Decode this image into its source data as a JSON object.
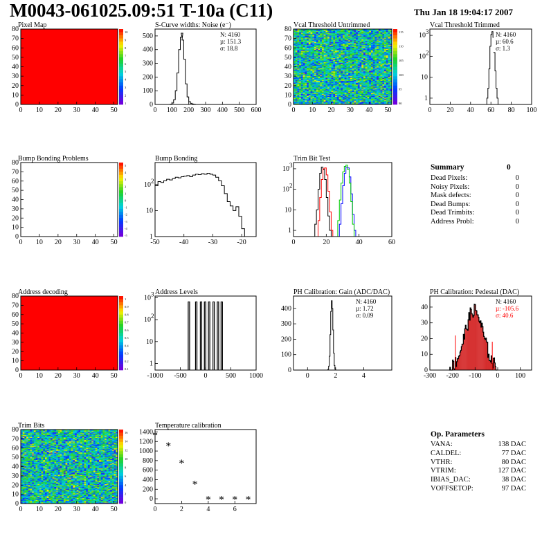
{
  "header": {
    "title": "M0043-061025.09:51 T-10a (C11)",
    "date": "Thu Jan 18 19:04:17 2007"
  },
  "colors": {
    "line": "#000000",
    "red": "#ff0000",
    "green": "#00cc00",
    "blue": "#0000ff",
    "pedestal_fill": "#cc0000"
  },
  "chart_data": [
    {
      "id": "pixel-map",
      "type": "heatmap",
      "title": "Pixel Map",
      "xlim": [
        0,
        52
      ],
      "ylim": [
        0,
        80
      ],
      "xticks": [
        0,
        10,
        20,
        30,
        40,
        50
      ],
      "yticks": [
        0,
        10,
        20,
        30,
        40,
        50,
        60,
        70,
        80
      ],
      "fill": "uniform-red",
      "zmax": 10,
      "palette_labels": [
        "10",
        "9",
        "8",
        "7",
        "6",
        "5",
        "4",
        "3",
        "2",
        "1"
      ]
    },
    {
      "id": "scurve",
      "type": "histogram",
      "title": "S-Curve widths: Noise (e⁻)",
      "xlim": [
        0,
        600
      ],
      "ylim": [
        0,
        550
      ],
      "xticks": [
        0,
        100,
        200,
        300,
        400,
        500,
        600
      ],
      "yticks": [
        0,
        100,
        200,
        300,
        400,
        500
      ],
      "stats": {
        "N": "4160",
        "mu": "151.3",
        "sigma": "18.8"
      },
      "bins": [
        [
          90,
          2
        ],
        [
          100,
          10
        ],
        [
          110,
          35
        ],
        [
          120,
          100
        ],
        [
          130,
          230
        ],
        [
          140,
          400
        ],
        [
          150,
          490
        ],
        [
          155,
          520
        ],
        [
          160,
          470
        ],
        [
          170,
          330
        ],
        [
          180,
          150
        ],
        [
          190,
          55
        ],
        [
          200,
          20
        ],
        [
          210,
          8
        ],
        [
          220,
          3
        ],
        [
          230,
          1
        ],
        [
          240,
          0
        ]
      ],
      "bin_width": 10
    },
    {
      "id": "vcal-untrimmed",
      "type": "heatmap",
      "title": "Vcal Threshold Untrimmed",
      "xlim": [
        0,
        52
      ],
      "ylim": [
        0,
        80
      ],
      "xticks": [
        0,
        10,
        20,
        30,
        40,
        50
      ],
      "yticks": [
        0,
        10,
        20,
        30,
        40,
        50,
        60,
        70,
        80
      ],
      "fill": "noise",
      "palette_labels": [
        "115",
        "110",
        "105",
        "100",
        "95",
        "90"
      ]
    },
    {
      "id": "vcal-trimmed",
      "type": "histogram",
      "title": "Vcal Threshold Trimmed",
      "xlim": [
        0,
        100
      ],
      "log_y": true,
      "ylim": [
        0.5,
        2000
      ],
      "xticks": [
        0,
        20,
        40,
        60,
        80,
        100
      ],
      "yticks": [
        1,
        10,
        100,
        1000
      ],
      "stats": {
        "N": "4160",
        "mu": "60.6",
        "sigma": "1.3"
      },
      "bins": [
        [
          56,
          1
        ],
        [
          57,
          3
        ],
        [
          58,
          25
        ],
        [
          59,
          300
        ],
        [
          60,
          1100
        ],
        [
          61,
          1500
        ],
        [
          62,
          800
        ],
        [
          63,
          150
        ],
        [
          64,
          20
        ],
        [
          65,
          3
        ],
        [
          66,
          1
        ]
      ],
      "bin_width": 1
    },
    {
      "id": "bump-problems",
      "type": "heatmap",
      "title": "Bump Bonding Problems",
      "xlim": [
        0,
        52
      ],
      "ylim": [
        0,
        80
      ],
      "xticks": [
        0,
        10,
        20,
        30,
        40,
        50
      ],
      "yticks": [
        0,
        10,
        20,
        30,
        40,
        50,
        60,
        70,
        80
      ],
      "fill": "empty",
      "palette_labels": [
        "5",
        "4",
        "3",
        "2",
        "1",
        "0",
        "-1",
        "-2",
        "-3",
        "-4",
        "-5"
      ]
    },
    {
      "id": "bump-bonding",
      "type": "histogram",
      "title": "Bump Bonding",
      "xlim": [
        -50,
        -15
      ],
      "log_y": true,
      "ylim": [
        1,
        700
      ],
      "xticks": [
        -50,
        -40,
        -30,
        -20
      ],
      "yticks": [
        1,
        10,
        100
      ],
      "bins": [
        [
          -50,
          90
        ],
        [
          -49,
          130
        ],
        [
          -48,
          120
        ],
        [
          -47,
          140
        ],
        [
          -46,
          160
        ],
        [
          -45,
          150
        ],
        [
          -44,
          170
        ],
        [
          -43,
          190
        ],
        [
          -42,
          180
        ],
        [
          -41,
          200
        ],
        [
          -40,
          210
        ],
        [
          -39,
          220
        ],
        [
          -38,
          200
        ],
        [
          -37,
          230
        ],
        [
          -36,
          250
        ],
        [
          -35,
          240
        ],
        [
          -34,
          260
        ],
        [
          -33,
          250
        ],
        [
          -32,
          270
        ],
        [
          -31,
          250
        ],
        [
          -30,
          230
        ],
        [
          -29,
          190
        ],
        [
          -28,
          140
        ],
        [
          -27,
          90
        ],
        [
          -26,
          45
        ],
        [
          -25,
          22
        ],
        [
          -24,
          15
        ],
        [
          -23,
          10
        ],
        [
          -22,
          14
        ],
        [
          -21,
          6
        ],
        [
          -20,
          2
        ]
      ],
      "bin_width": 1
    },
    {
      "id": "trim-bit",
      "type": "histogram",
      "title": "Trim Bit Test",
      "xlim": [
        0,
        60
      ],
      "log_y": true,
      "ylim": [
        0.5,
        2000
      ],
      "xticks": [
        0,
        20,
        40,
        60
      ],
      "yticks": [
        1,
        10,
        100,
        1000
      ],
      "series": [
        {
          "color": "#000000",
          "bins": [
            [
              13,
              2
            ],
            [
              14,
              10
            ],
            [
              15,
              100
            ],
            [
              16,
              600
            ],
            [
              17,
              1200
            ],
            [
              18,
              900
            ],
            [
              19,
              300
            ],
            [
              20,
              40
            ],
            [
              21,
              5
            ],
            [
              22,
              1
            ]
          ]
        },
        {
          "color": "#ff0000",
          "bins": [
            [
              15,
              3
            ],
            [
              16,
              40
            ],
            [
              17,
              300
            ],
            [
              18,
              1000
            ],
            [
              19,
              1100
            ],
            [
              20,
              500
            ],
            [
              21,
              80
            ],
            [
              22,
              8
            ],
            [
              23,
              1
            ]
          ]
        },
        {
          "color": "#0000ff",
          "bins": [
            [
              28,
              2
            ],
            [
              29,
              20
            ],
            [
              30,
              150
            ],
            [
              31,
              600
            ],
            [
              32,
              1200
            ],
            [
              33,
              1100
            ],
            [
              34,
              400
            ],
            [
              35,
              60
            ],
            [
              36,
              6
            ],
            [
              37,
              1
            ]
          ]
        },
        {
          "color": "#00cc00",
          "bins": [
            [
              27,
              3
            ],
            [
              28,
              30
            ],
            [
              29,
              200
            ],
            [
              30,
              700
            ],
            [
              31,
              1300
            ],
            [
              32,
              1500
            ],
            [
              33,
              900
            ],
            [
              34,
              200
            ],
            [
              35,
              25
            ],
            [
              36,
              2
            ]
          ]
        }
      ],
      "bin_width": 1
    },
    {
      "id": "address-decoding",
      "type": "heatmap",
      "title": "Address decoding",
      "xlim": [
        0,
        52
      ],
      "ylim": [
        0,
        80
      ],
      "xticks": [
        0,
        10,
        20,
        30,
        40,
        50
      ],
      "yticks": [
        0,
        10,
        20,
        30,
        40,
        50,
        60,
        70,
        80
      ],
      "fill": "uniform-red",
      "palette_labels": [
        "1",
        "0.9",
        "0.8",
        "0.7",
        "0.6",
        "0.5",
        "0.4",
        "0.3",
        "0.2",
        "0.1"
      ]
    },
    {
      "id": "address-levels",
      "type": "histogram",
      "title": "Address Levels",
      "xlim": [
        -1000,
        1000
      ],
      "log_y": true,
      "ylim": [
        0.5,
        1200
      ],
      "xticks": [
        -1000,
        -500,
        0,
        500,
        1000
      ],
      "yticks": [
        1,
        10,
        100,
        1000
      ],
      "peaks": [
        -330,
        -185,
        -90,
        -10,
        70,
        160,
        245,
        320
      ],
      "peak_height": 650
    },
    {
      "id": "ph-gain",
      "type": "histogram",
      "title": "PH Calibration: Gain (ADC/DAC)",
      "xlim": [
        -1,
        6
      ],
      "ylim": [
        0,
        480
      ],
      "xticks": [
        0,
        2,
        4
      ],
      "yticks": [
        0,
        100,
        200,
        300,
        400
      ],
      "stats": {
        "N": "4160",
        "mu": "1.72",
        "sigma": "0.09"
      },
      "bins": [
        [
          1.45,
          5
        ],
        [
          1.5,
          25
        ],
        [
          1.55,
          90
        ],
        [
          1.6,
          230
        ],
        [
          1.65,
          380
        ],
        [
          1.7,
          450
        ],
        [
          1.75,
          400
        ],
        [
          1.8,
          260
        ],
        [
          1.85,
          110
        ],
        [
          1.9,
          30
        ],
        [
          1.95,
          6
        ]
      ],
      "bin_width": 0.05
    },
    {
      "id": "ph-pedestal",
      "type": "histogram",
      "title": "PH Calibration: Pedestal (DAC)",
      "xlim": [
        -300,
        150
      ],
      "ylim": [
        0,
        47
      ],
      "xticks": [
        -300,
        -200,
        -100,
        0,
        100
      ],
      "yticks": [
        0,
        10,
        20,
        30,
        40
      ],
      "stats": {
        "N": "4160",
        "mu": "-105.6",
        "sigma": "40.6"
      },
      "mu": -105.6,
      "sigma": 40.6,
      "peak": 38
    },
    {
      "id": "trim-bits",
      "type": "heatmap",
      "title": "Trim Bits",
      "xlim": [
        0,
        52
      ],
      "ylim": [
        0,
        80
      ],
      "xticks": [
        0,
        10,
        20,
        30,
        40,
        50
      ],
      "yticks": [
        0,
        10,
        20,
        30,
        40,
        50,
        60,
        70,
        80
      ],
      "fill": "noise-trim",
      "palette_labels": [
        "16",
        "14",
        "12",
        "10",
        "8",
        "6",
        "4",
        "2",
        "0"
      ]
    },
    {
      "id": "temperature",
      "type": "scatter",
      "title": "Temperature calibration",
      "xlim": [
        0,
        7.6
      ],
      "ylim": [
        -100,
        1450
      ],
      "xticks": [
        0,
        2,
        4,
        6
      ],
      "yticks": [
        0,
        200,
        400,
        600,
        800,
        1000,
        1200,
        1400
      ],
      "x": [
        0,
        1,
        2,
        3,
        4,
        5,
        6,
        7
      ],
      "y": [
        1320,
        1100,
        740,
        300,
        -20,
        -20,
        -20,
        -20
      ],
      "marker": "*"
    }
  ],
  "summary": {
    "heading": "Summary",
    "total": "0",
    "rows": [
      {
        "label": "Dead Pixels:",
        "value": "0"
      },
      {
        "label": "Noisy Pixels:",
        "value": "0"
      },
      {
        "label": "Mask defects:",
        "value": "0"
      },
      {
        "label": "Dead Bumps:",
        "value": "0"
      },
      {
        "label": "Dead Trimbits:",
        "value": "0"
      },
      {
        "label": "Address Probl:",
        "value": "0"
      }
    ]
  },
  "op_params": {
    "heading": "Op. Parameters",
    "rows": [
      {
        "label": "VANA:",
        "value": "138 DAC"
      },
      {
        "label": "CALDEL:",
        "value": "77 DAC"
      },
      {
        "label": "VTHR:",
        "value": "80 DAC"
      },
      {
        "label": "VTRIM:",
        "value": "127 DAC"
      },
      {
        "label": "IBIAS_DAC:",
        "value": "38 DAC"
      },
      {
        "label": "VOFFSETOP:",
        "value": "97 DAC"
      }
    ]
  }
}
